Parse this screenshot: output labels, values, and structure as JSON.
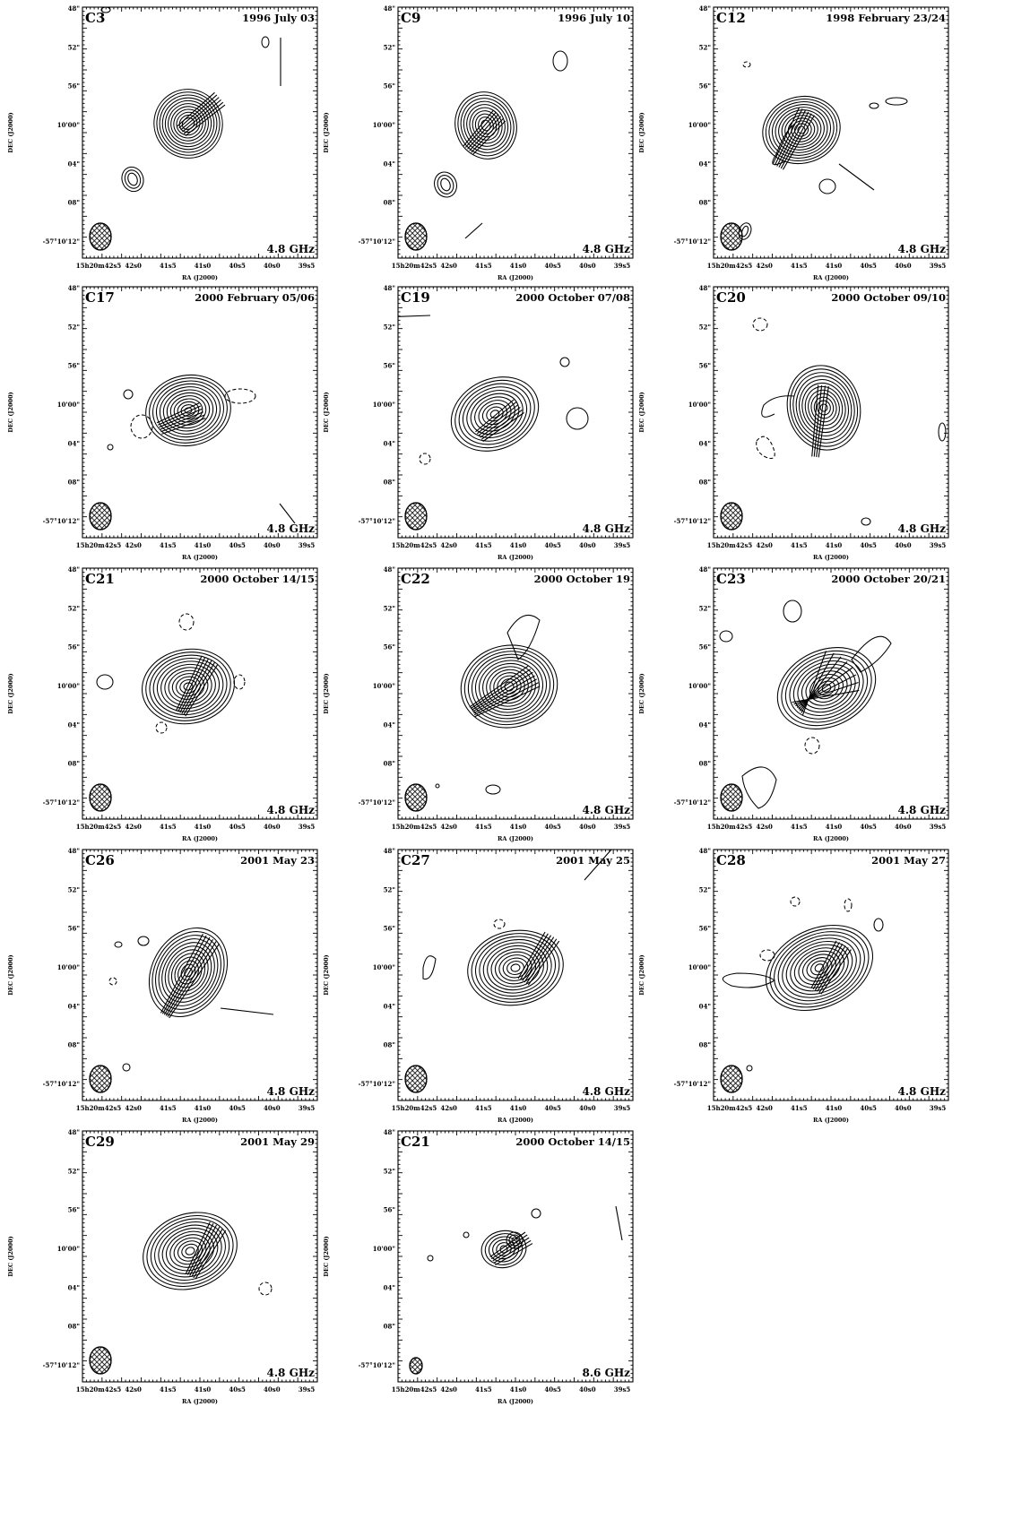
{
  "ra_axis": {
    "label": "RA (J2000)",
    "ticks": [
      "15h20m42s5",
      "42s0",
      "41s5",
      "41s0",
      "40s5",
      "40s0",
      "39s5"
    ]
  },
  "dec_axis": {
    "label": "DEC (J2000)",
    "ticks": [
      "48\"",
      "52\"",
      "56\"",
      "10'00\"",
      "04\"",
      "08\"",
      "-57°10'12\""
    ]
  },
  "panels": [
    {
      "id": "C3",
      "date": "1996 July 03",
      "freq": "4.8 GHz"
    },
    {
      "id": "C9",
      "date": "1996 July 10",
      "freq": "4.8 GHz"
    },
    {
      "id": "C12",
      "date": "1998 February 23/24",
      "freq": "4.8 GHz"
    },
    {
      "id": "C17",
      "date": "2000 February 05/06",
      "freq": "4.8 GHz"
    },
    {
      "id": "C19",
      "date": "2000 October 07/08",
      "freq": "4.8 GHz"
    },
    {
      "id": "C20",
      "date": "2000 October 09/10",
      "freq": "4.8 GHz"
    },
    {
      "id": "C21",
      "date": "2000 October 14/15",
      "freq": "4.8 GHz"
    },
    {
      "id": "C22",
      "date": "2000 October 19",
      "freq": "4.8 GHz"
    },
    {
      "id": "C23",
      "date": "2000 October 20/21",
      "freq": "4.8 GHz"
    },
    {
      "id": "C26",
      "date": "2001 May 23",
      "freq": "4.8 GHz"
    },
    {
      "id": "C27",
      "date": "2001 May 25",
      "freq": "4.8 GHz"
    },
    {
      "id": "C28",
      "date": "2001 May 27",
      "freq": "4.8 GHz"
    },
    {
      "id": "C29",
      "date": "2001 May 29",
      "freq": "4.8 GHz"
    },
    {
      "id": "C21",
      "date": "2000 October 14/15",
      "freq": "8.6 GHz"
    }
  ]
}
